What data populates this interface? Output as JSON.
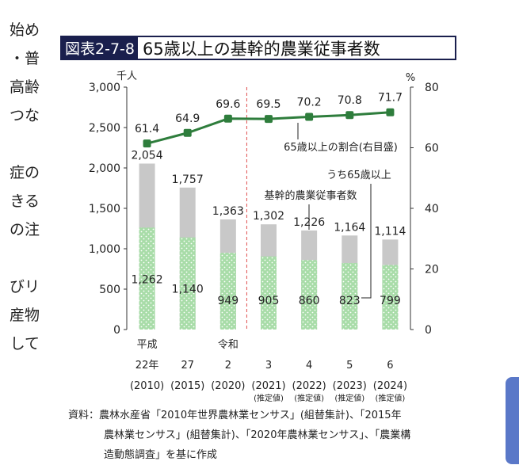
{
  "left_text": [
    "始め",
    "・普",
    "高齢",
    "つな",
    "",
    "症の",
    "きる",
    "の注",
    "",
    "びリ",
    "産物",
    "して"
  ],
  "figure": {
    "label": "図表2-7-8",
    "title": "65歳以上の基幹的農業従事者数"
  },
  "chart_data": {
    "type": "bar",
    "categories": [
      "22年",
      "27",
      "2",
      "3",
      "4",
      "5",
      "6"
    ],
    "era_labels": [
      "平成",
      "",
      "令和",
      "",
      "",
      "",
      ""
    ],
    "year_labels": [
      "(2010)",
      "(2015)",
      "(2020)",
      "(2021)",
      "(2022)",
      "(2023)",
      "(2024)"
    ],
    "estimate_labels": [
      "",
      "",
      "",
      "(推定値)",
      "(推定値)",
      "(推定値)",
      "(推定値)"
    ],
    "series": [
      {
        "name": "基幹的農業従事者数",
        "values": [
          2054,
          1757,
          1363,
          1302,
          1226,
          1164,
          1114
        ],
        "color": "#c8c8c8"
      },
      {
        "name": "うち65歳以上",
        "values": [
          1262,
          1140,
          949,
          905,
          860,
          823,
          799
        ],
        "color": "#a8dca8"
      },
      {
        "name": "65歳以上の割合(右目盛)",
        "values": [
          61.4,
          64.9,
          69.6,
          69.5,
          70.2,
          70.8,
          71.7
        ],
        "color": "#2e7d3c",
        "axis": "right"
      }
    ],
    "y_left": {
      "unit": "千人",
      "ticks": [
        "0",
        "500",
        "1,000",
        "1,500",
        "2,000",
        "2,500",
        "3,000"
      ],
      "range": [
        0,
        3000
      ]
    },
    "y_right": {
      "unit": "%",
      "ticks": [
        "0",
        "20",
        "40",
        "60",
        "80"
      ],
      "range": [
        0,
        80
      ]
    },
    "total_labels": [
      "2,054",
      "1,757",
      "1,363",
      "1,302",
      "1,226",
      "1,164",
      "1,114"
    ],
    "sub_labels": [
      "1,262",
      "1,140",
      "949",
      "905",
      "860",
      "823",
      "799"
    ],
    "pct_labels": [
      "61.4",
      "64.9",
      "69.6",
      "69.5",
      "70.2",
      "70.8",
      "71.7"
    ],
    "dashed_divider": "between 2020 and 2021"
  },
  "source": {
    "prefix": "資料：",
    "lines": [
      "農林水産省「2010年世界農林業センサス」(組替集計)、「2015年",
      "農林業センサス」(組替集計)、「2020年農林業センサス」、「農業構",
      "造動態調査」を基に作成"
    ]
  }
}
